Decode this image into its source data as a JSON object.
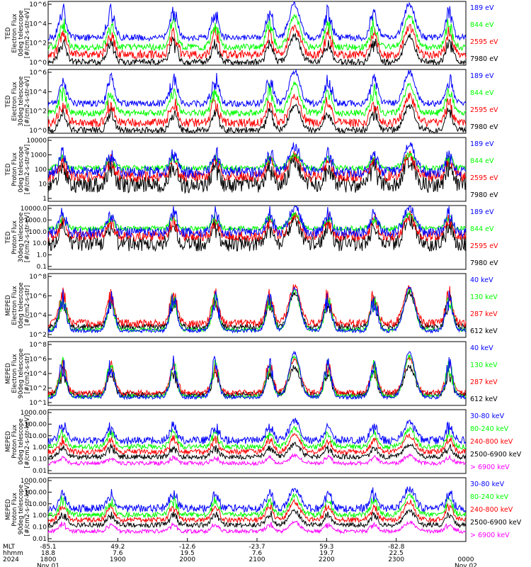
{
  "colors": {
    "blue": "#0000ff",
    "red": "#ff0000",
    "green": "#00ff00",
    "black": "#000000",
    "magenta": "#ff00ff"
  },
  "chart_data": [
    {
      "type": "line",
      "ylabel": [
        "TED",
        "Electron Flux",
        "0deg telescope",
        "[#/cm2-s-str-eV]"
      ],
      "y_ticks": [
        "10^6",
        "10^4",
        "10^2",
        "10^0"
      ],
      "log_range": [
        0,
        6
      ],
      "series": [
        {
          "name": "7980 eV",
          "color": "#000000",
          "base": 0.3,
          "noise": 0.3,
          "peak": 2.4
        },
        {
          "name": "2595 eV",
          "color": "#ff0000",
          "base": 1.0,
          "noise": 0.4,
          "peak": 2.6
        },
        {
          "name": "844 eV",
          "color": "#00ff00",
          "base": 1.7,
          "noise": 0.3,
          "peak": 2.9
        },
        {
          "name": "189 eV",
          "color": "#0000ff",
          "base": 2.6,
          "noise": 0.3,
          "peak": 3.2
        }
      ]
    },
    {
      "type": "line",
      "ylabel": [
        "TED",
        "Electron Flux",
        "30deg telescope",
        "[#/cm2-s-str-eV]"
      ],
      "y_ticks": [
        "10^6",
        "10^4",
        "10^2",
        "10^0"
      ],
      "log_range": [
        0,
        6
      ],
      "series": [
        {
          "name": "7980 eV",
          "color": "#000000",
          "base": 0.3,
          "noise": 0.3,
          "peak": 2.3
        },
        {
          "name": "2595 eV",
          "color": "#ff0000",
          "base": 1.0,
          "noise": 0.4,
          "peak": 2.5
        },
        {
          "name": "844 eV",
          "color": "#00ff00",
          "base": 1.9,
          "noise": 0.3,
          "peak": 2.7
        },
        {
          "name": "189 eV",
          "color": "#0000ff",
          "base": 2.8,
          "noise": 0.3,
          "peak": 3.0
        }
      ]
    },
    {
      "type": "line",
      "ylabel": [
        "TED",
        "Proton Flux",
        "0deg telescope",
        "[#/cm2-s-str-eV]"
      ],
      "y_ticks": [
        "10000",
        "1000",
        "100",
        "10",
        "1"
      ],
      "log_range": [
        -0.3,
        4.3
      ],
      "series": [
        {
          "name": "7980 eV",
          "color": "#000000",
          "base": 0.9,
          "noise": 0.6,
          "peak": 1.8
        },
        {
          "name": "2595 eV",
          "color": "#ff0000",
          "base": 1.5,
          "noise": 0.4,
          "peak": 1.5
        },
        {
          "name": "844 eV",
          "color": "#00ff00",
          "base": 2.1,
          "noise": 0.2,
          "peak": 1.0
        },
        {
          "name": "189 eV",
          "color": "#0000ff",
          "base": 1.8,
          "noise": 0.4,
          "peak": 1.9
        }
      ]
    },
    {
      "type": "line",
      "ylabel": [
        "TED",
        "Proton Flux",
        "30deg telescope",
        "[#/cm2-s-str-eV]"
      ],
      "y_ticks": [
        "10000.0",
        "1000.0",
        "100.0",
        "10.0",
        "1.0",
        "0.1"
      ],
      "log_range": [
        -1,
        4
      ],
      "series": [
        {
          "name": "7980 eV",
          "color": "#000000",
          "base": 1.0,
          "noise": 0.6,
          "peak": 1.9
        },
        {
          "name": "2595 eV",
          "color": "#ff0000",
          "base": 1.6,
          "noise": 0.4,
          "peak": 1.6
        },
        {
          "name": "844 eV",
          "color": "#00ff00",
          "base": 2.2,
          "noise": 0.2,
          "peak": 1.1
        },
        {
          "name": "189 eV",
          "color": "#0000ff",
          "base": 1.9,
          "noise": 0.4,
          "peak": 2.0
        }
      ]
    },
    {
      "type": "line",
      "ylabel": [
        "MEPED",
        "Electron Flux",
        "0deg telescope",
        "[#/cm2-s-str]"
      ],
      "y_ticks": [
        "10^8",
        "10^6",
        "10^4",
        "10^2"
      ],
      "log_range": [
        1.3,
        8
      ],
      "series": [
        {
          "name": "612 keV",
          "color": "#000000",
          "base": 2.4,
          "noise": 0.3,
          "peak": 3.6
        },
        {
          "name": "287 keV",
          "color": "#ff0000",
          "base": 2.8,
          "noise": 0.4,
          "peak": 3.8
        },
        {
          "name": "130 keV",
          "color": "#00ff00",
          "base": 2.1,
          "noise": 0.2,
          "peak": 4.2
        },
        {
          "name": "40 keV",
          "color": "#0000ff",
          "base": 2.0,
          "noise": 0.2,
          "peak": 4.5
        }
      ]
    },
    {
      "type": "line",
      "ylabel": [
        "MEPED",
        "Electron Flux",
        "90deg telescope",
        "[#/cm2-s-str]"
      ],
      "y_ticks": [
        "10^8",
        "10^6",
        "10^4",
        "10^2",
        "10^1"
      ],
      "log_range": [
        1,
        8
      ],
      "series": [
        {
          "name": "612 keV",
          "color": "#000000",
          "base": 2.2,
          "noise": 0.3,
          "peak": 3.0
        },
        {
          "name": "287 keV",
          "color": "#ff0000",
          "base": 2.4,
          "noise": 0.3,
          "peak": 3.8
        },
        {
          "name": "130 keV",
          "color": "#00ff00",
          "base": 2.0,
          "noise": 0.2,
          "peak": 4.4
        },
        {
          "name": "40 keV",
          "color": "#0000ff",
          "base": 1.9,
          "noise": 0.2,
          "peak": 4.9
        }
      ]
    },
    {
      "type": "line",
      "ylabel": [
        "MEPED",
        "Proton Flux",
        "0deg telescope",
        "[#/cm2-s-str-keV]"
      ],
      "y_ticks": [
        "1000.00",
        "100.00",
        "10.00",
        "1.00",
        "0.10",
        "0.01"
      ],
      "log_range": [
        -2,
        3
      ],
      "series": [
        {
          "name": "> 6900 keV",
          "color": "#ff00ff",
          "base": -1.2,
          "noise": 0.15,
          "peak": 0.6
        },
        {
          "name": "2500-6900 keV",
          "color": "#000000",
          "base": -0.7,
          "noise": 0.2,
          "peak": 1.0
        },
        {
          "name": "240-800 keV",
          "color": "#ff0000",
          "base": -0.3,
          "noise": 0.2,
          "peak": 1.3
        },
        {
          "name": "80-240 keV",
          "color": "#00ff00",
          "base": 0.1,
          "noise": 0.2,
          "peak": 1.4
        },
        {
          "name": "30-80 keV",
          "color": "#0000ff",
          "base": 0.6,
          "noise": 0.3,
          "peak": 1.5
        }
      ]
    },
    {
      "type": "line",
      "ylabel": [
        "MEPED",
        "Proton Flux",
        "90deg telescope",
        "[#/cm2-s-str-keV]"
      ],
      "y_ticks": [
        "1000.00",
        "100.00",
        "10.00",
        "1.00",
        "0.10",
        "0.01"
      ],
      "log_range": [
        -2,
        3
      ],
      "series": [
        {
          "name": "> 6900 keV",
          "color": "#ff00ff",
          "base": -1.2,
          "noise": 0.15,
          "peak": 0.7
        },
        {
          "name": "2500-6900 keV",
          "color": "#000000",
          "base": -0.7,
          "noise": 0.2,
          "peak": 1.1
        },
        {
          "name": "240-800 keV",
          "color": "#ff0000",
          "base": -0.3,
          "noise": 0.2,
          "peak": 1.4
        },
        {
          "name": "80-240 keV",
          "color": "#00ff00",
          "base": 0.1,
          "noise": 0.2,
          "peak": 1.5
        },
        {
          "name": "30-80 keV",
          "color": "#0000ff",
          "base": 0.6,
          "noise": 0.3,
          "peak": 1.6
        }
      ]
    }
  ],
  "x_axis": {
    "row_labels": [
      "MLT",
      "hhmm",
      "2024"
    ],
    "ticks": [
      {
        "l": [
          "-85.1",
          "18.8",
          "1800",
          "Nov 01"
        ]
      },
      {
        "l": [
          "49.2",
          "7.6",
          "1900",
          ""
        ]
      },
      {
        "l": [
          "-12.6",
          "19.5",
          "2000",
          ""
        ]
      },
      {
        "l": [
          "-23.7",
          "7.6",
          "2100",
          ""
        ]
      },
      {
        "l": [
          "59.3",
          "19.7",
          "2200",
          ""
        ]
      },
      {
        "l": [
          "-82.8",
          "22.5",
          "2300",
          ""
        ]
      },
      {
        "l": [
          "",
          "",
          "0000",
          "Nov 02"
        ]
      }
    ]
  }
}
